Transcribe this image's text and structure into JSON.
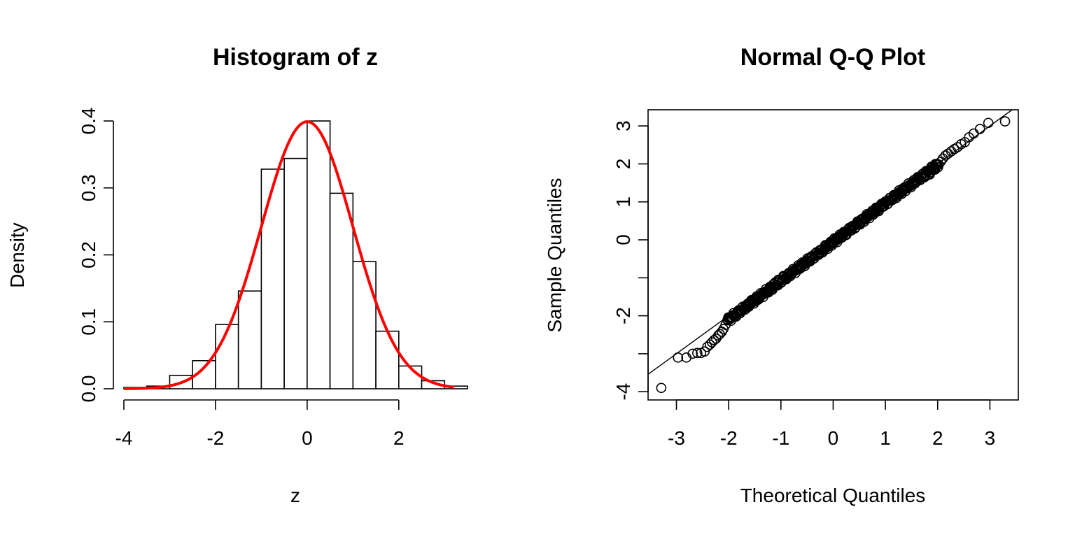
{
  "chart_data": [
    {
      "type": "bar",
      "kind": "histogram",
      "title": "Histogram of z",
      "xlabel": "z",
      "ylabel": "Density",
      "xlim": [
        -4,
        3.5
      ],
      "ylim": [
        0,
        0.4
      ],
      "x_ticks": [
        -4,
        -2,
        0,
        2
      ],
      "x_tick_labels": [
        "-4",
        "-2",
        "0",
        "2"
      ],
      "y_ticks": [
        0,
        0.1,
        0.2,
        0.3,
        0.4
      ],
      "y_tick_labels": [
        "0.0",
        "0.1",
        "0.2",
        "0.3",
        "0.4"
      ],
      "bin_edges": [
        -4,
        -3.5,
        -3,
        -2.5,
        -2,
        -1.5,
        -1,
        -0.5,
        0,
        0.5,
        1,
        1.5,
        2,
        2.5,
        3,
        3.5
      ],
      "values": [
        0.002,
        0.004,
        0.02,
        0.042,
        0.096,
        0.146,
        0.328,
        0.344,
        0.4,
        0.292,
        0.19,
        0.086,
        0.034,
        0.012,
        0.004
      ],
      "overlay": {
        "kind": "normal-density",
        "mean": 0,
        "sd": 1,
        "color": "#ff0000"
      },
      "grid": false,
      "legend": "none"
    },
    {
      "type": "scatter",
      "kind": "qq-plot",
      "title": "Normal Q-Q Plot",
      "xlabel": "Theoretical Quantiles",
      "ylabel": "Sample Quantiles",
      "xlim": [
        -3.5,
        3.5
      ],
      "ylim": [
        -4.2,
        3.4
      ],
      "x_ticks": [
        -3,
        -2,
        -1,
        0,
        1,
        2,
        3
      ],
      "x_tick_labels": [
        "-3",
        "-2",
        "-1",
        "0",
        "1",
        "2",
        "3"
      ],
      "y_ticks": [
        -4,
        -3,
        -2,
        -1,
        0,
        1,
        2,
        3
      ],
      "y_tick_labels": [
        "-4",
        "",
        "-2",
        "",
        "0",
        "1",
        "2",
        "3"
      ],
      "points": [
        [
          -3.29,
          -3.9
        ],
        [
          -2.97,
          -3.1
        ],
        [
          -2.81,
          -3.1
        ],
        [
          -2.69,
          -3.0
        ],
        [
          -2.6,
          -2.98
        ],
        [
          -2.53,
          -2.98
        ],
        [
          -2.46,
          -2.94
        ],
        [
          -2.41,
          -2.82
        ],
        [
          -2.36,
          -2.76
        ],
        [
          -2.32,
          -2.7
        ],
        [
          -2.28,
          -2.64
        ],
        [
          -2.24,
          -2.6
        ],
        [
          -2.2,
          -2.52
        ],
        [
          -2.17,
          -2.48
        ],
        [
          -2.13,
          -2.42
        ],
        [
          -2.1,
          -2.35
        ],
        [
          -2.06,
          -2.24
        ],
        [
          -2.02,
          -2.1
        ],
        [
          -1.95,
          -2.05
        ],
        [
          -1.85,
          -1.95
        ],
        [
          -1.75,
          -1.85
        ],
        [
          -1.65,
          -1.75
        ],
        [
          -1.55,
          -1.65
        ],
        [
          -1.45,
          -1.55
        ],
        [
          -1.35,
          -1.42
        ],
        [
          -1.25,
          -1.33
        ],
        [
          -1.15,
          -1.18
        ],
        [
          -1.05,
          -1.05
        ],
        [
          -0.95,
          -0.95
        ],
        [
          -0.85,
          -0.88
        ],
        [
          -0.75,
          -0.8
        ],
        [
          -0.65,
          -0.7
        ],
        [
          -0.55,
          -0.6
        ],
        [
          -0.45,
          -0.48
        ],
        [
          -0.35,
          -0.37
        ],
        [
          -0.25,
          -0.27
        ],
        [
          -0.15,
          -0.17
        ],
        [
          -0.05,
          -0.07
        ],
        [
          0.05,
          0.03
        ],
        [
          0.15,
          0.12
        ],
        [
          0.25,
          0.22
        ],
        [
          0.35,
          0.33
        ],
        [
          0.45,
          0.43
        ],
        [
          0.55,
          0.54
        ],
        [
          0.65,
          0.64
        ],
        [
          0.75,
          0.76
        ],
        [
          0.85,
          0.85
        ],
        [
          0.95,
          0.94
        ],
        [
          1.05,
          1.03
        ],
        [
          1.15,
          1.13
        ],
        [
          1.25,
          1.24
        ],
        [
          1.35,
          1.33
        ],
        [
          1.45,
          1.44
        ],
        [
          1.55,
          1.51
        ],
        [
          1.65,
          1.58
        ],
        [
          1.75,
          1.65
        ],
        [
          1.85,
          1.72
        ],
        [
          1.95,
          1.85
        ],
        [
          2.02,
          1.98
        ],
        [
          2.06,
          2.06
        ],
        [
          2.1,
          2.14
        ],
        [
          2.15,
          2.22
        ],
        [
          2.2,
          2.27
        ],
        [
          2.26,
          2.33
        ],
        [
          2.32,
          2.39
        ],
        [
          2.38,
          2.44
        ],
        [
          2.45,
          2.52
        ],
        [
          2.52,
          2.57
        ],
        [
          2.6,
          2.7
        ],
        [
          2.69,
          2.8
        ],
        [
          2.81,
          2.92
        ],
        [
          2.97,
          3.08
        ],
        [
          3.29,
          3.12
        ]
      ],
      "dense_segments": [
        {
          "x_from": -2.02,
          "x_to": 2.02,
          "y_from": -2.12,
          "y_to": 2.0
        }
      ],
      "reference_line": {
        "intercept": 0.0,
        "slope": 1.0
      },
      "grid": false,
      "legend": "none"
    }
  ]
}
